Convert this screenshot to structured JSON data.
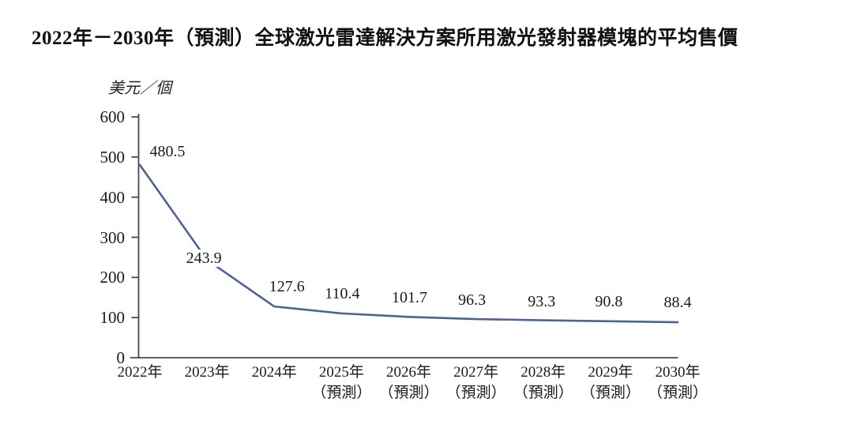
{
  "page": {
    "title": "2022年－2030年（預測）全球激光雷達解決方案所用激光發射器模塊的平均售價"
  },
  "chart_data": {
    "type": "line",
    "title": "2022年－2030年（預測）全球激光雷達解決方案所用激光發射器模塊的平均售價",
    "ylabel_unit": "美元／個",
    "categories": [
      "2022年",
      "2023年",
      "2024年",
      "2025年（預測）",
      "2026年（預測）",
      "2027年（預測）",
      "2028年（預測）",
      "2029年（預測）",
      "2030年（預測）"
    ],
    "x_tick_lines": [
      [
        "2022年"
      ],
      [
        "2023年"
      ],
      [
        "2024年"
      ],
      [
        "2025年",
        "（預測）"
      ],
      [
        "2026年",
        "（預測）"
      ],
      [
        "2027年",
        "（預測）"
      ],
      [
        "2028年",
        "（預測）"
      ],
      [
        "2029年",
        "（預測）"
      ],
      [
        "2030年",
        "（預測）"
      ]
    ],
    "values": [
      480.5,
      243.9,
      127.6,
      110.4,
      101.7,
      96.3,
      93.3,
      90.8,
      88.4
    ],
    "data_labels": [
      "480.5",
      "243.9",
      "127.6",
      "110.4",
      "101.7",
      "96.3",
      "93.3",
      "90.8",
      "88.4"
    ],
    "ylim": [
      0,
      600
    ],
    "yticks": [
      0,
      100,
      200,
      300,
      400,
      500,
      600
    ],
    "grid": false,
    "legend": false,
    "line_color": "#4c6590",
    "axis_color": "#4a4a4a",
    "text_color": "#1a1a1a"
  }
}
